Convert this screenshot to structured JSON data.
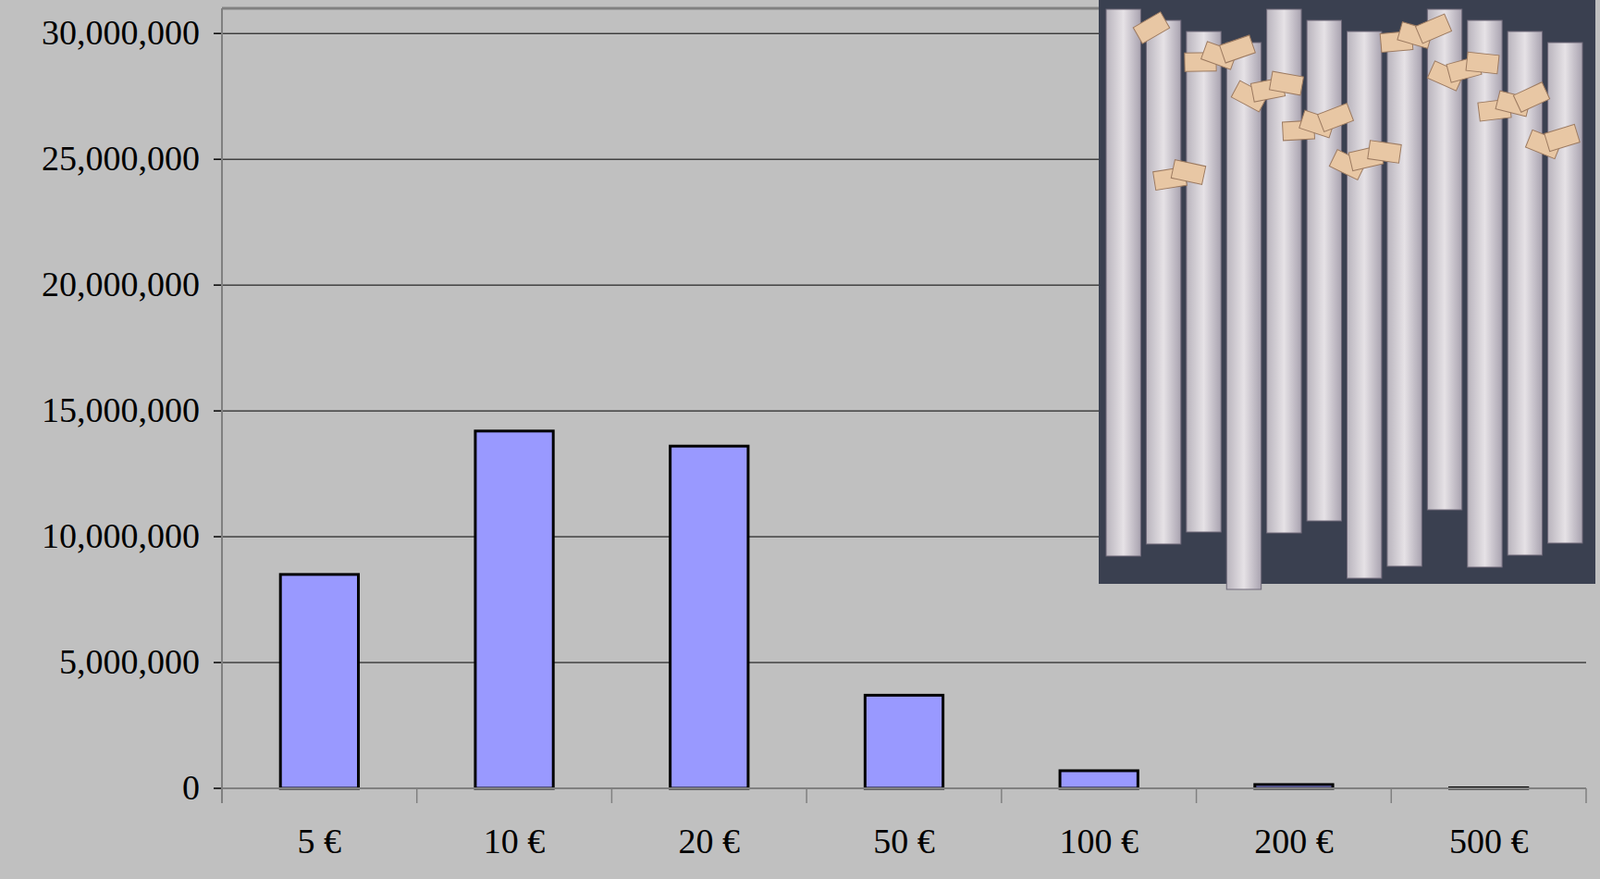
{
  "chart_data": {
    "type": "bar",
    "categories": [
      "5 €",
      "10 €",
      "20 €",
      "50 €",
      "100 €",
      "200 €",
      "500 €"
    ],
    "values": [
      8500000,
      14200000,
      13600000,
      3700000,
      700000,
      150000,
      20000
    ],
    "color": "#9999ff",
    "ylim": [
      0,
      31000000
    ],
    "yticks": [
      0,
      {
        "value": 5000000,
        "label": "5,000,000"
      },
      {
        "value": 10000000,
        "label": "10,000,000"
      },
      {
        "value": 15000000,
        "label": "15,000,000"
      },
      {
        "value": 20000000,
        "label": "20,000,000"
      },
      {
        "value": 25000000,
        "label": "25,000,000"
      },
      {
        "value": 30000000,
        "label": "30,000,000"
      }
    ],
    "grid": true
  }
}
